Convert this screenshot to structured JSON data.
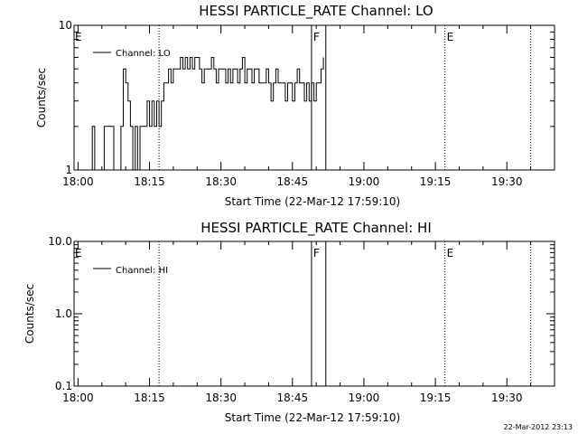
{
  "timestamp": "22-Mar-2012 23:13",
  "chart_data": [
    {
      "type": "line",
      "title": "HESSI PARTICLE_RATE Channel: LO",
      "xlabel": "Start Time (22-Mar-12 17:59:10)",
      "ylabel": "Counts/sec",
      "yscale": "log",
      "ylim": [
        1,
        10
      ],
      "yticks": [
        "1",
        "10"
      ],
      "xlim": [
        "17:59:10",
        "19:40:00"
      ],
      "xticks": [
        "18:00",
        "18:15",
        "18:30",
        "18:45",
        "19:00",
        "19:15",
        "19:30"
      ],
      "legend": {
        "position": "top-left",
        "entries": [
          "Channel: LO"
        ]
      },
      "flags": [
        {
          "label": "E",
          "time": "17:59:10",
          "style": "text"
        },
        {
          "label": "",
          "time": "18:17:00",
          "style": "dotted"
        },
        {
          "label": "F",
          "time": "18:49:00",
          "style": "solid"
        },
        {
          "label": "",
          "time": "18:52:00",
          "style": "solid"
        },
        {
          "label": "E",
          "time": "19:17:00",
          "style": "dotted"
        },
        {
          "label": "",
          "time": "19:35:00",
          "style": "dotted"
        }
      ],
      "series": [
        {
          "name": "Channel: LO",
          "points": [
            [
              "18:02:00",
              1
            ],
            [
              "18:03:00",
              2
            ],
            [
              "18:03:30",
              1
            ],
            [
              "18:05:00",
              1
            ],
            [
              "18:05:30",
              2
            ],
            [
              "18:07:00",
              2
            ],
            [
              "18:07:30",
              1
            ],
            [
              "18:08:30",
              1
            ],
            [
              "18:09:00",
              2
            ],
            [
              "18:09:30",
              5
            ],
            [
              "18:10:00",
              4
            ],
            [
              "18:10:30",
              3
            ],
            [
              "18:11:00",
              2
            ],
            [
              "18:11:30",
              1
            ],
            [
              "18:12:00",
              2
            ],
            [
              "18:12:30",
              1
            ],
            [
              "18:13:00",
              2
            ],
            [
              "18:14:00",
              2
            ],
            [
              "18:14:30",
              3
            ],
            [
              "18:15:00",
              2
            ],
            [
              "18:15:30",
              3
            ],
            [
              "18:16:00",
              2
            ],
            [
              "18:16:30",
              3
            ],
            [
              "18:17:00",
              2
            ],
            [
              "18:17:30",
              3
            ],
            [
              "18:18:00",
              4
            ],
            [
              "18:18:30",
              4
            ],
            [
              "18:19:00",
              5
            ],
            [
              "18:19:30",
              4
            ],
            [
              "18:20:00",
              5
            ],
            [
              "18:21:00",
              5
            ],
            [
              "18:21:30",
              6
            ],
            [
              "18:22:00",
              5
            ],
            [
              "18:22:30",
              6
            ],
            [
              "18:23:00",
              5
            ],
            [
              "18:23:30",
              6
            ],
            [
              "18:24:00",
              5
            ],
            [
              "18:24:30",
              6
            ],
            [
              "18:25:00",
              6
            ],
            [
              "18:25:30",
              5
            ],
            [
              "18:26:00",
              4
            ],
            [
              "18:26:30",
              5
            ],
            [
              "18:27:30",
              5
            ],
            [
              "18:28:00",
              6
            ],
            [
              "18:28:30",
              5
            ],
            [
              "18:29:00",
              4
            ],
            [
              "18:29:30",
              5
            ],
            [
              "18:30:30",
              5
            ],
            [
              "18:31:00",
              4
            ],
            [
              "18:31:30",
              5
            ],
            [
              "18:32:00",
              4
            ],
            [
              "18:32:30",
              5
            ],
            [
              "18:33:00",
              5
            ],
            [
              "18:33:30",
              4
            ],
            [
              "18:34:00",
              5
            ],
            [
              "18:34:30",
              6
            ],
            [
              "18:35:00",
              4
            ],
            [
              "18:35:30",
              5
            ],
            [
              "18:36:00",
              5
            ],
            [
              "18:36:30",
              4
            ],
            [
              "18:37:00",
              5
            ],
            [
              "18:38:00",
              4
            ],
            [
              "18:38:30",
              4
            ],
            [
              "18:39:00",
              4
            ],
            [
              "18:39:30",
              5
            ],
            [
              "18:40:00",
              4
            ],
            [
              "18:40:30",
              3
            ],
            [
              "18:41:00",
              4
            ],
            [
              "18:41:30",
              5
            ],
            [
              "18:42:00",
              4
            ],
            [
              "18:42:30",
              4
            ],
            [
              "18:43:00",
              4
            ],
            [
              "18:43:30",
              3
            ],
            [
              "18:44:00",
              4
            ],
            [
              "18:44:30",
              4
            ],
            [
              "18:45:00",
              3
            ],
            [
              "18:45:30",
              4
            ],
            [
              "18:46:00",
              5
            ],
            [
              "18:46:30",
              4
            ],
            [
              "18:47:00",
              4
            ],
            [
              "18:47:30",
              3
            ],
            [
              "18:48:00",
              4
            ],
            [
              "18:48:30",
              3
            ],
            [
              "18:49:00",
              4
            ],
            [
              "18:49:30",
              3
            ],
            [
              "18:50:00",
              4
            ],
            [
              "18:50:30",
              4
            ],
            [
              "18:51:00",
              5
            ],
            [
              "18:51:30",
              6
            ]
          ]
        }
      ]
    },
    {
      "type": "line",
      "title": "HESSI PARTICLE_RATE Channel: HI",
      "xlabel": "Start Time (22-Mar-12 17:59:10)",
      "ylabel": "Counts/sec",
      "yscale": "log",
      "ylim": [
        0.1,
        10
      ],
      "yticks": [
        "0.1",
        "1.0",
        "10.0"
      ],
      "xlim": [
        "17:59:10",
        "19:40:00"
      ],
      "xticks": [
        "18:00",
        "18:15",
        "18:30",
        "18:45",
        "19:00",
        "19:15",
        "19:30"
      ],
      "legend": {
        "position": "top-left",
        "entries": [
          "Channel: HI"
        ]
      },
      "flags": [
        {
          "label": "E",
          "time": "17:59:10",
          "style": "text"
        },
        {
          "label": "",
          "time": "18:17:00",
          "style": "dotted"
        },
        {
          "label": "F",
          "time": "18:49:00",
          "style": "solid"
        },
        {
          "label": "",
          "time": "18:52:00",
          "style": "solid"
        },
        {
          "label": "E",
          "time": "19:17:00",
          "style": "dotted"
        },
        {
          "label": "",
          "time": "19:35:00",
          "style": "dotted"
        }
      ],
      "series": [
        {
          "name": "Channel: HI",
          "points": []
        }
      ]
    }
  ]
}
